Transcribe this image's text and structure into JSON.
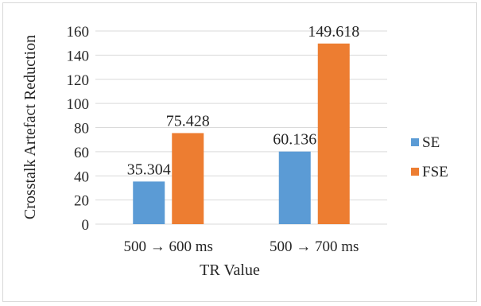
{
  "chart_data": {
    "type": "bar",
    "title": "",
    "xlabel": "TR Value",
    "ylabel": "Crosstalk Artefact Reduction",
    "categories": [
      "500 → 600 ms",
      "500 → 700 ms"
    ],
    "series": [
      {
        "name": "SE",
        "values": [
          35.304,
          60.136
        ],
        "labels": [
          "35.304",
          "60.136"
        ],
        "color": "#5b9bd5"
      },
      {
        "name": "FSE",
        "values": [
          75.428,
          149.618
        ],
        "labels": [
          "75.428",
          "149.618"
        ],
        "color": "#ed7d31"
      }
    ],
    "ylim": [
      0,
      160
    ],
    "yticks": [
      "0",
      "20",
      "40",
      "60",
      "80",
      "100",
      "120",
      "140",
      "160"
    ],
    "grid": true,
    "gridColor": "#d9d9d9",
    "legend_position": "right"
  }
}
